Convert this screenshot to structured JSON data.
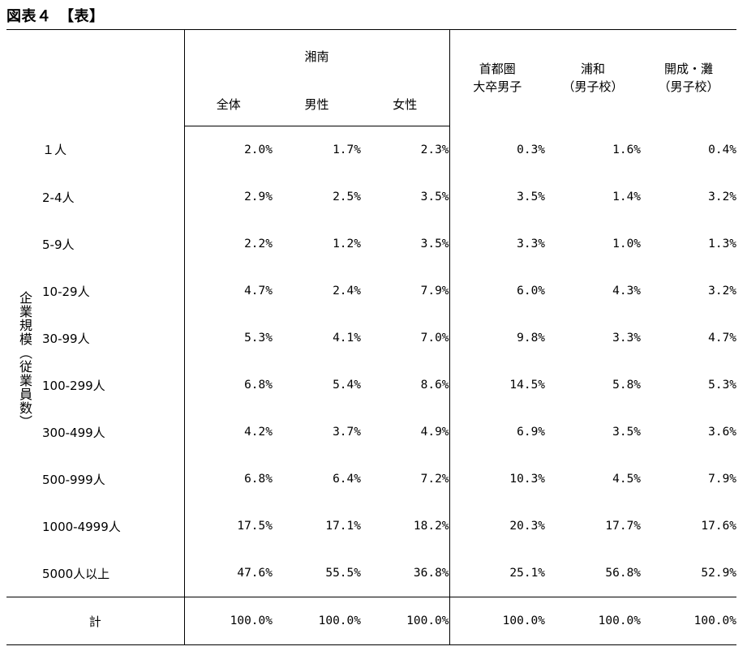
{
  "title": "図表４　【表】",
  "table": {
    "group_header": "湘南",
    "columns": [
      {
        "id": "shonan_all",
        "label": [
          "全体"
        ]
      },
      {
        "id": "shonan_male",
        "label": [
          "男性"
        ]
      },
      {
        "id": "shonan_female",
        "label": [
          "女性"
        ]
      },
      {
        "id": "shutoken",
        "label": [
          "首都圏",
          "大卒男子"
        ]
      },
      {
        "id": "urawa",
        "label": [
          "浦和",
          "（男子校）"
        ]
      },
      {
        "id": "kaisei_nada",
        "label": [
          "開成・灘",
          "（男子校）"
        ]
      }
    ],
    "row_group_label": "企業規模（従業員数）",
    "rows": [
      {
        "label": "１人",
        "values": [
          "2.0%",
          "1.7%",
          "2.3%",
          "0.3%",
          "1.6%",
          "0.4%"
        ]
      },
      {
        "label": "2-4人",
        "values": [
          "2.9%",
          "2.5%",
          "3.5%",
          "3.5%",
          "1.4%",
          "3.2%"
        ]
      },
      {
        "label": "5-9人",
        "values": [
          "2.2%",
          "1.2%",
          "3.5%",
          "3.3%",
          "1.0%",
          "1.3%"
        ]
      },
      {
        "label": "10-29人",
        "values": [
          "4.7%",
          "2.4%",
          "7.9%",
          "6.0%",
          "4.3%",
          "3.2%"
        ]
      },
      {
        "label": "30-99人",
        "values": [
          "5.3%",
          "4.1%",
          "7.0%",
          "9.8%",
          "3.3%",
          "4.7%"
        ]
      },
      {
        "label": "100-299人",
        "values": [
          "6.8%",
          "5.4%",
          "8.6%",
          "14.5%",
          "5.8%",
          "5.3%"
        ]
      },
      {
        "label": "300-499人",
        "values": [
          "4.2%",
          "3.7%",
          "4.9%",
          "6.9%",
          "3.5%",
          "3.6%"
        ]
      },
      {
        "label": "500-999人",
        "values": [
          "6.8%",
          "6.4%",
          "7.2%",
          "10.3%",
          "4.5%",
          "7.9%"
        ]
      },
      {
        "label": "1000-4999人",
        "values": [
          "17.5%",
          "17.1%",
          "18.2%",
          "20.3%",
          "17.7%",
          "17.6%"
        ]
      },
      {
        "label": "5000人以上",
        "values": [
          "47.6%",
          "55.5%",
          "36.8%",
          "25.1%",
          "56.8%",
          "52.9%"
        ]
      }
    ],
    "total": {
      "label": "計",
      "values": [
        "100.0%",
        "100.0%",
        "100.0%",
        "100.0%",
        "100.0%",
        "100.0%"
      ]
    }
  }
}
